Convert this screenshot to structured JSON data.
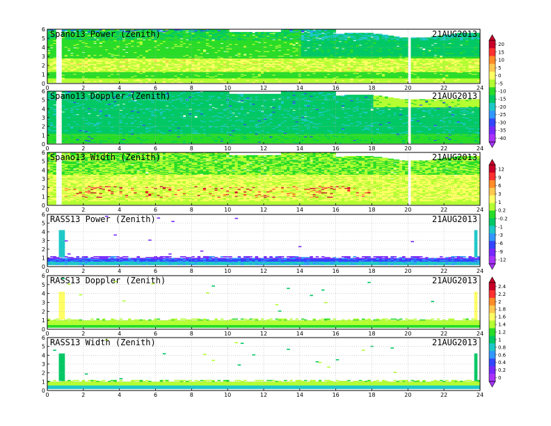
{
  "chart_data": [
    {
      "type": "heatmap",
      "title": "Spano13 Power (Zenith)",
      "date": "21AUG2013",
      "field": "power",
      "x_ticks": [
        "0",
        "2",
        "4",
        "6",
        "8",
        "10",
        "12",
        "14",
        "16",
        "18",
        "20",
        "22",
        "24"
      ],
      "y_ticks": [
        "0",
        "1",
        "2",
        "3",
        "4",
        "5",
        "6"
      ],
      "xlim": [
        0,
        24
      ],
      "ylim": [
        0,
        6
      ],
      "grid": true,
      "colorbar": "cb1"
    },
    {
      "type": "heatmap",
      "title": "Spano13 Doppler (Zenith)",
      "date": "21AUG2013",
      "field": "doppler",
      "x_ticks": [
        "0",
        "2",
        "4",
        "6",
        "8",
        "10",
        "12",
        "14",
        "16",
        "18",
        "20",
        "22",
        "24"
      ],
      "y_ticks": [
        "0",
        "1",
        "2",
        "3",
        "4",
        "5",
        "6"
      ],
      "xlim": [
        0,
        24
      ],
      "ylim": [
        0,
        6
      ],
      "grid": true,
      "colorbar": "cb1"
    },
    {
      "type": "heatmap",
      "title": "Spano13 Width (Zenith)",
      "date": "21AUG2013",
      "field": "width",
      "x_ticks": [
        "0",
        "2",
        "4",
        "6",
        "8",
        "10",
        "12",
        "14",
        "16",
        "18",
        "20",
        "22",
        "24"
      ],
      "y_ticks": [
        "0",
        "1",
        "2",
        "3",
        "4",
        "5",
        "6"
      ],
      "xlim": [
        0,
        24
      ],
      "ylim": [
        0,
        6
      ],
      "grid": true,
      "colorbar": "cb2"
    },
    {
      "type": "heatmap",
      "title": "RASS13 Power (Zenith)",
      "date": "21AUG2013",
      "field": "rass_power",
      "x_ticks": [
        "0",
        "2",
        "4",
        "6",
        "8",
        "10",
        "12",
        "14",
        "16",
        "18",
        "20",
        "22",
        "24"
      ],
      "y_ticks": [
        "0",
        "1",
        "2",
        "3",
        "4",
        "5",
        "6"
      ],
      "xlim": [
        0,
        24
      ],
      "ylim": [
        0,
        6
      ],
      "grid": true,
      "colorbar": "cb2"
    },
    {
      "type": "heatmap",
      "title": "RASS13 Doppler (Zenith)",
      "date": "21AUG2013",
      "field": "rass_doppler",
      "x_ticks": [
        "0",
        "2",
        "4",
        "6",
        "8",
        "10",
        "12",
        "14",
        "16",
        "18",
        "20",
        "22",
        "24"
      ],
      "y_ticks": [
        "0",
        "1",
        "2",
        "3",
        "4",
        "5",
        "6"
      ],
      "xlim": [
        0,
        24
      ],
      "ylim": [
        0,
        6
      ],
      "grid": true,
      "colorbar": "cb3"
    },
    {
      "type": "heatmap",
      "title": "RASS13 Width (Zenith)",
      "date": "21AUG2013",
      "field": "rass_width",
      "x_ticks": [
        "0",
        "2",
        "4",
        "6",
        "8",
        "10",
        "12",
        "14",
        "16",
        "18",
        "20",
        "22",
        "24"
      ],
      "y_ticks": [
        "0",
        "1",
        "2",
        "3",
        "4",
        "5",
        "6"
      ],
      "xlim": [
        0,
        24
      ],
      "ylim": [
        0,
        6
      ],
      "grid": true,
      "colorbar": "cb3"
    }
  ],
  "colorbars": {
    "cb1": {
      "labels": [
        "20",
        "15",
        "10",
        "5",
        "0",
        "-5",
        "-10",
        "-15",
        "-20",
        "-25",
        "-30",
        "-35",
        "-40"
      ],
      "colors": [
        "#c80028",
        "#ff3030",
        "#ff8c28",
        "#ffc850",
        "#ffff64",
        "#b4ff32",
        "#28dc28",
        "#00c864",
        "#1ec8c8",
        "#3296ff",
        "#3246ff",
        "#7828ff",
        "#aa32ff"
      ]
    },
    "cb2": {
      "labels": [
        "12",
        "9",
        "6",
        "3",
        "1",
        "0.2",
        "-0.2",
        "-1",
        "-3",
        "-6",
        "-9",
        "-12"
      ],
      "colors": [
        "#c80028",
        "#ff3030",
        "#ff8c28",
        "#ffc850",
        "#ffff64",
        "#b4ff32",
        "#28dc28",
        "#00c864",
        "#1ec8c8",
        "#3296ff",
        "#3246ff",
        "#7828ff",
        "#aa32ff"
      ]
    },
    "cb3": {
      "labels": [
        "2.4",
        "2.2",
        "2",
        "1.8",
        "1.6",
        "1.4",
        "1.2",
        "1",
        "0.8",
        "0.6",
        "0.4",
        "0.2",
        "0"
      ],
      "colors": [
        "#c80028",
        "#ff3030",
        "#ff8c28",
        "#ffc850",
        "#ffff64",
        "#b4ff32",
        "#28dc28",
        "#00c864",
        "#1ec8c8",
        "#3296ff",
        "#3246ff",
        "#7828ff",
        "#aa32ff"
      ]
    }
  }
}
